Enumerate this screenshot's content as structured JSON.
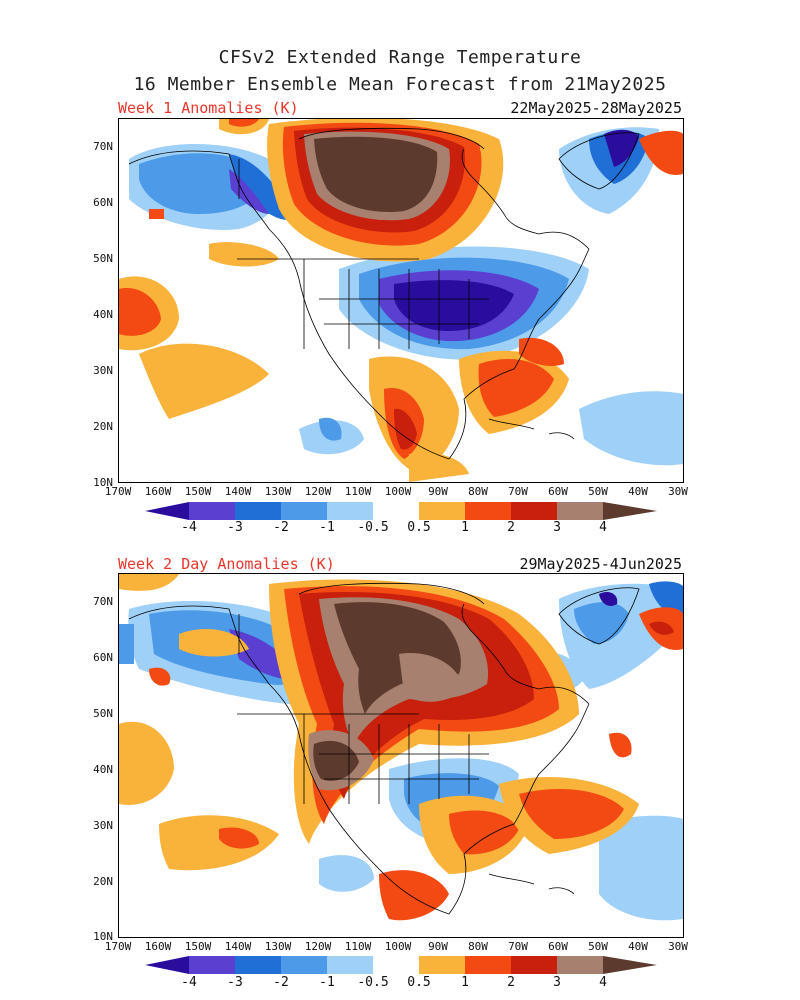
{
  "header": {
    "title_line1": "CFSv2 Extended Range Temperature",
    "title_line2": "16 Member Ensemble Mean Forecast from 21May2025"
  },
  "panels": [
    {
      "label": "Week 1 Anomalies (K)",
      "date_range": "22May2025-28May2025"
    },
    {
      "label": "Week 2 Day Anomalies (K)",
      "date_range": "29May2025-4Jun2025"
    }
  ],
  "axes": {
    "lat_labels": [
      "70N",
      "60N",
      "50N",
      "40N",
      "30N",
      "20N",
      "10N"
    ],
    "lon_labels": [
      "170W",
      "160W",
      "150W",
      "140W",
      "130W",
      "120W",
      "110W",
      "100W",
      "90W",
      "80W",
      "70W",
      "60W",
      "50W",
      "40W",
      "30W"
    ]
  },
  "colorbar": {
    "labels": [
      "-4",
      "-3",
      "-2",
      "-1",
      "-0.5",
      "0.5",
      "1",
      "2",
      "3",
      "4"
    ],
    "colors": [
      "#2b0d9e",
      "#5a3fd0",
      "#1f6fd6",
      "#4d9be8",
      "#9fd0f7",
      "#ffffff",
      "#f9b23a",
      "#f24a12",
      "#c8200c",
      "#9a1008",
      "#a7806f",
      "#5c3a2e"
    ]
  },
  "palette": {
    "coast": "#000000",
    "label_red": "#e8362c"
  }
}
